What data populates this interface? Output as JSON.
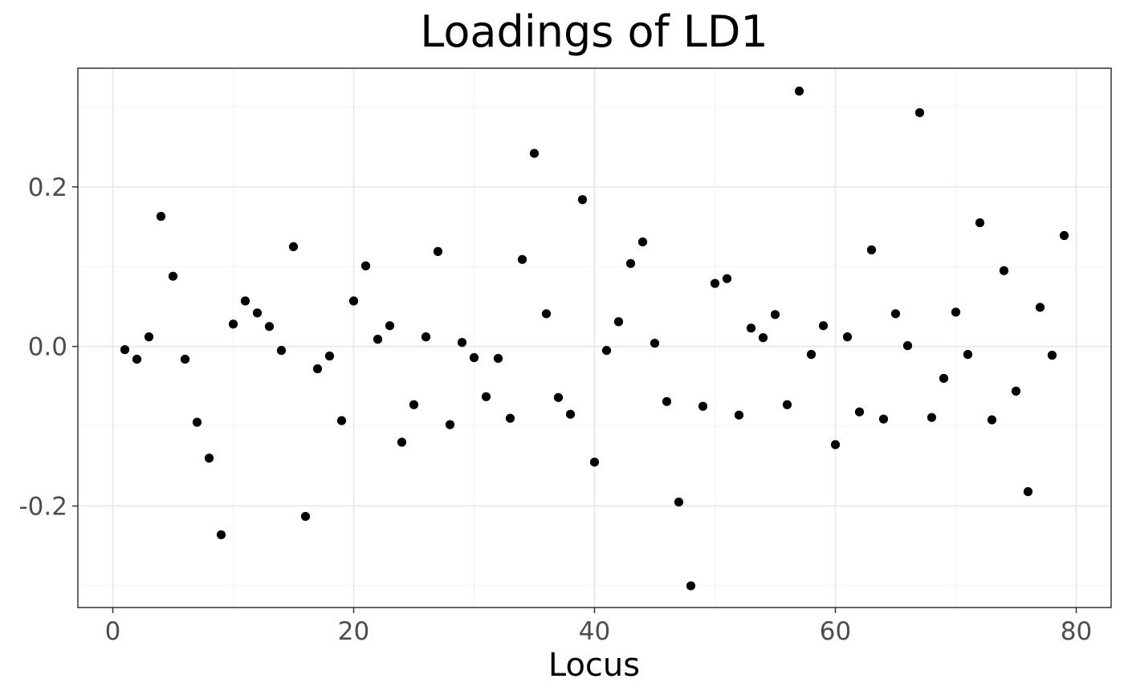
{
  "chart_data": {
    "type": "scatter",
    "title": "Loadings of LD1",
    "xlabel": "Locus",
    "ylabel": "",
    "xlim": [
      -2.9,
      82.9
    ],
    "ylim": [
      -0.3272,
      0.3487
    ],
    "x_ticks": [
      0,
      20,
      40,
      60,
      80
    ],
    "x_tick_labels": [
      "0",
      "20",
      "40",
      "60",
      "80"
    ],
    "y_ticks": [
      -0.2,
      0.0,
      0.2
    ],
    "y_tick_labels": [
      "-0.2",
      "0.0",
      "0.2"
    ],
    "grid": true,
    "legend": "none",
    "x": [
      1,
      2,
      3,
      4,
      5,
      6,
      7,
      8,
      9,
      10,
      11,
      12,
      13,
      14,
      15,
      16,
      17,
      18,
      19,
      20,
      21,
      22,
      23,
      24,
      25,
      26,
      27,
      28,
      29,
      30,
      31,
      32,
      33,
      34,
      35,
      36,
      37,
      38,
      39,
      40,
      41,
      42,
      43,
      44,
      45,
      46,
      47,
      48,
      49,
      50,
      51,
      52,
      53,
      54,
      55,
      56,
      57,
      58,
      59,
      60,
      61,
      62,
      63,
      64,
      65,
      66,
      67,
      68,
      69,
      70,
      71,
      72,
      73,
      74,
      75,
      76,
      77,
      78,
      79
    ],
    "y": [
      -0.004,
      -0.016,
      0.012,
      0.163,
      0.088,
      -0.016,
      -0.095,
      -0.14,
      -0.236,
      0.028,
      0.057,
      0.042,
      0.025,
      -0.005,
      0.125,
      -0.213,
      -0.028,
      -0.012,
      -0.093,
      0.057,
      0.101,
      0.009,
      0.026,
      -0.12,
      -0.073,
      0.012,
      0.119,
      -0.098,
      0.005,
      -0.014,
      -0.063,
      -0.015,
      -0.09,
      0.109,
      0.242,
      0.041,
      -0.064,
      -0.085,
      0.184,
      -0.145,
      -0.005,
      0.031,
      0.104,
      0.131,
      0.004,
      -0.069,
      -0.195,
      -0.3,
      -0.075,
      0.079,
      0.085,
      -0.086,
      0.023,
      0.011,
      0.04,
      -0.073,
      0.32,
      -0.01,
      0.026,
      -0.123,
      0.012,
      -0.082,
      0.121,
      -0.091,
      0.041,
      0.001,
      0.293,
      -0.089,
      -0.04,
      0.043,
      -0.01,
      0.155,
      -0.092,
      0.095,
      -0.056,
      -0.182,
      0.049,
      -0.011,
      0.139
    ],
    "colors": {
      "point": "#000000",
      "grid_major": "#ebebeb",
      "grid_minor": "#f3f3f3",
      "panel_border": "#333333",
      "tick_text": "#4d4d4d"
    }
  }
}
